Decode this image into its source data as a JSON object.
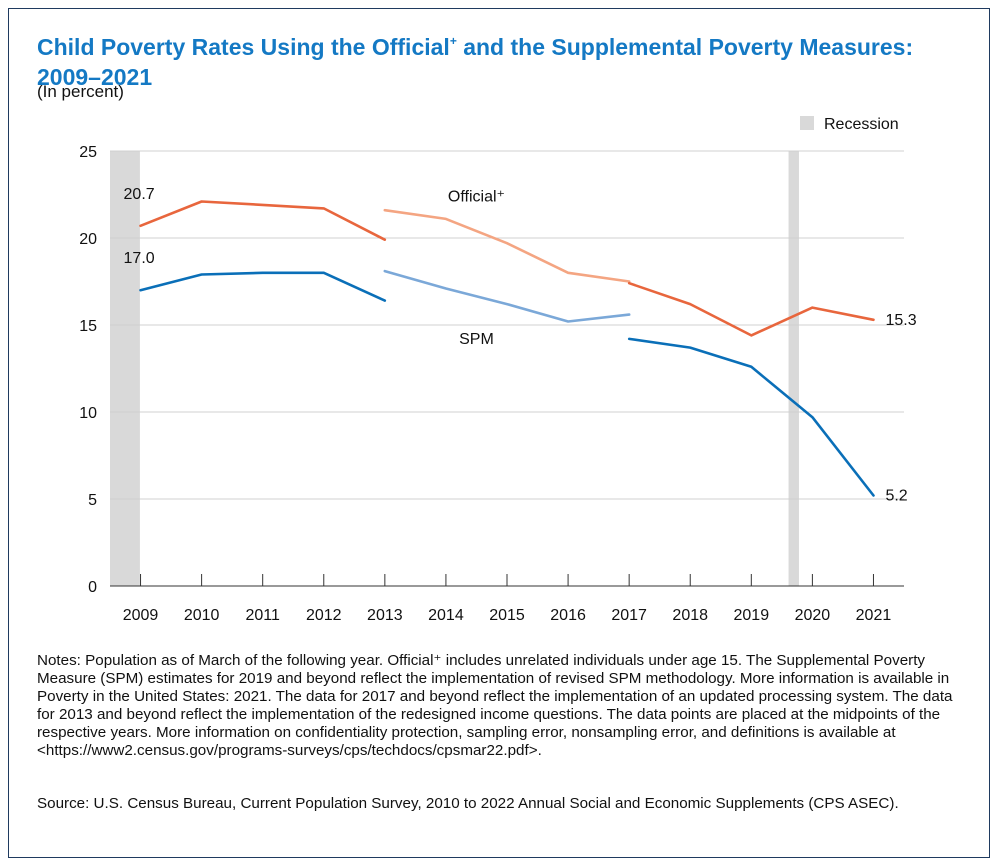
{
  "title_main": "Child Poverty Rates Using the Official",
  "title_plus": "+",
  "title_rest": " and the Supplemental Poverty Measures: 2009–2021",
  "subtitle": "(In percent)",
  "notes": "Notes: Population as of March of the following year. Official⁺ includes unrelated individuals under age 15. The Supplemental Poverty Measure (SPM) estimates for 2019 and beyond reflect the implementation of revised SPM methodology. More information is available in Poverty in the United States: 2021. The data for 2017 and beyond reflect the implementation of an updated processing system. The data for 2013 and beyond reflect the implementation of the redesigned income questions. The data points are placed at the midpoints of the respective years. More information on confidentiality protection, sampling error, nonsampling error, and definitions is available at <https://www2.census.gov/programs-surveys/cps/techdocs/cpsmar22.pdf>.",
  "source": "Source: U.S. Census Bureau, Current Population Survey, 2010 to 2022 Annual Social and Economic Supplements (CPS ASEC).",
  "colors": {
    "title": "#1479c4",
    "official": "#e8663d",
    "official_light": "#f4a582",
    "spm": "#0a6fb8",
    "spm_light": "#7ba8d8",
    "recession": "#d9d9d9",
    "grid": "#d0d0d0",
    "axis": "#333333"
  },
  "chart_data": {
    "type": "line",
    "ylim": [
      0,
      25
    ],
    "y_ticks": [
      0,
      5,
      10,
      15,
      20,
      25
    ],
    "x_ticks": [
      2009,
      2010,
      2011,
      2012,
      2013,
      2014,
      2015,
      2016,
      2017,
      2018,
      2019,
      2020,
      2021
    ],
    "x_range": [
      2008.5,
      2021.5
    ],
    "legend": {
      "label": "Recession",
      "placement": "top-right"
    },
    "recessions": [
      {
        "start": 2008.5,
        "end": 2008.99
      },
      {
        "start": 2019.61,
        "end": 2019.78
      }
    ],
    "series_labels": [
      {
        "text": "Official⁺",
        "x": 2014.5,
        "y": 22.1
      },
      {
        "text": "SPM",
        "x": 2014.5,
        "y": 13.9
      }
    ],
    "series": [
      {
        "group": "official",
        "style": "dark",
        "points": [
          [
            2009,
            20.7
          ],
          [
            2010,
            22.1
          ],
          [
            2011,
            21.9
          ],
          [
            2012,
            21.7
          ],
          [
            2013,
            19.9
          ]
        ]
      },
      {
        "group": "official",
        "style": "light",
        "points": [
          [
            2013,
            21.6
          ],
          [
            2014,
            21.1
          ],
          [
            2015,
            19.7
          ],
          [
            2016,
            18.0
          ],
          [
            2017,
            17.5
          ]
        ]
      },
      {
        "group": "official",
        "style": "dark",
        "points": [
          [
            2017,
            17.4
          ],
          [
            2018,
            16.2
          ],
          [
            2019,
            14.4
          ],
          [
            2020,
            16.0
          ],
          [
            2021,
            15.3
          ]
        ]
      },
      {
        "group": "spm",
        "style": "dark",
        "points": [
          [
            2009,
            17.0
          ],
          [
            2010,
            17.9
          ],
          [
            2011,
            18.0
          ],
          [
            2012,
            18.0
          ],
          [
            2013,
            16.4
          ]
        ]
      },
      {
        "group": "spm",
        "style": "light",
        "points": [
          [
            2013,
            18.1
          ],
          [
            2014,
            17.1
          ],
          [
            2015,
            16.2
          ],
          [
            2016,
            15.2
          ],
          [
            2017,
            15.6
          ]
        ]
      },
      {
        "group": "spm",
        "style": "dark",
        "points": [
          [
            2017,
            14.2
          ],
          [
            2018,
            13.7
          ],
          [
            2019,
            12.6
          ],
          [
            2020,
            9.7
          ],
          [
            2021,
            5.2
          ]
        ]
      }
    ],
    "data_labels": [
      {
        "text": "20.7",
        "x": 2009,
        "y": 20.7
      },
      {
        "text": "17.0",
        "x": 2009,
        "y": 17.0
      },
      {
        "text": "15.3",
        "x": 2021,
        "y": 15.3
      },
      {
        "text": "5.2",
        "x": 2021,
        "y": 5.2
      }
    ]
  }
}
